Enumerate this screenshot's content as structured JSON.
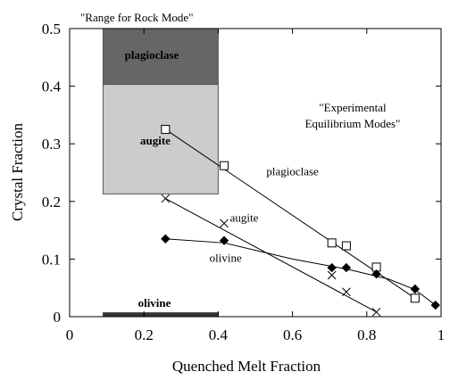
{
  "chart_data": {
    "type": "scatter",
    "title": "",
    "xlabel": "Quenched Melt  Fraction",
    "ylabel": "Crystal Fraction",
    "xlim": [
      0,
      1
    ],
    "ylim": [
      0,
      0.5
    ],
    "x_ticks": [
      "0",
      "0.2",
      "0.4",
      "0.6",
      "0.8",
      "1"
    ],
    "y_ticks": [
      "0",
      "0.1",
      "0.2",
      "0.3",
      "0.4",
      "0.5"
    ],
    "grid": false,
    "legend": "none",
    "rock_mode_header": "\"Range for Rock Mode\"",
    "rock_mode_ranges": [
      {
        "name": "plagioclase",
        "x": [
          0.09,
          0.4
        ],
        "y": [
          0.403,
          0.5
        ],
        "color": "#666666",
        "label_color": "#000000"
      },
      {
        "name": "augite",
        "x": [
          0.09,
          0.4
        ],
        "y": [
          0.213,
          0.403
        ],
        "color": "#cccccc",
        "label_color": "#000000"
      },
      {
        "name": "olivine",
        "x": [
          0.09,
          0.4
        ],
        "y": [
          0.0,
          0.007
        ],
        "color": "#333333",
        "label_color": "#000000"
      }
    ],
    "experimental_label": "\"Experimental\nEquilibrium Modes\"",
    "series": [
      {
        "name": "plagioclase",
        "marker": "open-square",
        "points": [
          {
            "x": 0.258,
            "y": 0.325
          },
          {
            "x": 0.416,
            "y": 0.262
          },
          {
            "x": 0.706,
            "y": 0.128
          },
          {
            "x": 0.745,
            "y": 0.123
          },
          {
            "x": 0.826,
            "y": 0.086
          },
          {
            "x": 0.93,
            "y": 0.032
          }
        ],
        "fit": [
          [
            0.258,
            0.325
          ],
          [
            0.93,
            0.032
          ]
        ]
      },
      {
        "name": "augite",
        "marker": "x",
        "points": [
          {
            "x": 0.258,
            "y": 0.205
          },
          {
            "x": 0.416,
            "y": 0.162
          },
          {
            "x": 0.706,
            "y": 0.072
          },
          {
            "x": 0.745,
            "y": 0.043
          },
          {
            "x": 0.826,
            "y": 0.008
          }
        ],
        "fit": [
          [
            0.258,
            0.205
          ],
          [
            0.826,
            0.008
          ]
        ]
      },
      {
        "name": "olivine",
        "marker": "filled-diamond",
        "points": [
          {
            "x": 0.258,
            "y": 0.135
          },
          {
            "x": 0.416,
            "y": 0.132
          },
          {
            "x": 0.706,
            "y": 0.085
          },
          {
            "x": 0.745,
            "y": 0.085
          },
          {
            "x": 0.826,
            "y": 0.074
          },
          {
            "x": 0.93,
            "y": 0.048
          },
          {
            "x": 0.985,
            "y": 0.02
          }
        ],
        "fit": [
          [
            0.258,
            0.135
          ],
          [
            0.416,
            0.128
          ],
          [
            0.6,
            0.1
          ],
          [
            0.75,
            0.082
          ],
          [
            0.86,
            0.065
          ],
          [
            0.93,
            0.047
          ],
          [
            0.985,
            0.02
          ]
        ]
      }
    ],
    "series_label_anchors": [
      {
        "name": "plagioclase",
        "x": 0.6,
        "y": 0.245
      },
      {
        "name": "augite",
        "x": 0.47,
        "y": 0.165
      },
      {
        "name": "olivine",
        "x": 0.42,
        "y": 0.095
      }
    ]
  }
}
